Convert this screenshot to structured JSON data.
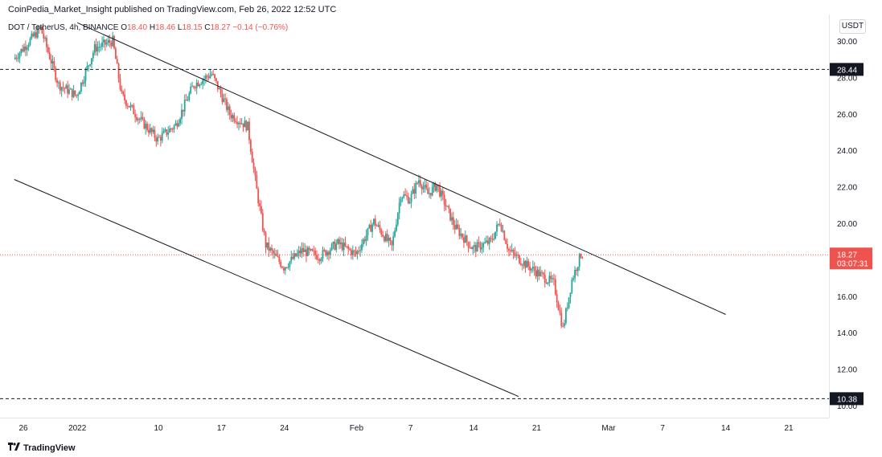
{
  "publisher": "CoinPedia_Market_Insight published on TradingView.com, Feb 26, 2022 12:52 UTC",
  "legend": {
    "symbol": "DOT / TetherUS, 4h, BINANCE",
    "open_label": "O",
    "open": "18.40",
    "high_label": "H",
    "high": "18.46",
    "low_label": "L",
    "low": "18.15",
    "close_label": "C",
    "close": "18.27",
    "change": "−0.14 (−0.76%)"
  },
  "currency": "USDT",
  "brand": "TradingView",
  "colors": {
    "up": "#26a69a",
    "down": "#ef5350",
    "axis_text": "#131722",
    "line": "#131722",
    "price_line": "#ef5350"
  },
  "chart_data": {
    "type": "candlestick",
    "pair": "DOT/USDT",
    "interval": "4h",
    "exchange": "BINANCE",
    "x_ticks": [
      "26",
      "2022",
      "10",
      "17",
      "24",
      "Feb",
      "7",
      "14",
      "21",
      "Mar",
      "7",
      "14",
      "21"
    ],
    "y_ticks": [
      "10.00",
      "12.00",
      "14.00",
      "16.00",
      "18.00",
      "20.00",
      "22.00",
      "24.00",
      "26.00",
      "28.00",
      "30.00"
    ],
    "ylim": [
      9.8,
      31.2
    ],
    "current_price": "18.27",
    "countdown": "03:07:31",
    "horizontal_levels": [
      {
        "label": "28.44",
        "value": 28.44
      },
      {
        "label": "10.38",
        "value": 10.38
      }
    ],
    "trend_lines": [
      {
        "name": "channel-upper",
        "from": {
          "x": "2022-01-01",
          "y": 31.0
        },
        "to": {
          "x": "2022-03-14",
          "y": 15.0
        }
      },
      {
        "name": "channel-lower",
        "from": {
          "x": "2021-12-25",
          "y": 22.4
        },
        "to": {
          "x": "2022-02-19",
          "y": 10.5
        }
      }
    ],
    "price_path": [
      {
        "date": "2021-12-25",
        "price": 29.0
      },
      {
        "date": "2021-12-28",
        "price": 30.7
      },
      {
        "date": "2021-12-30",
        "price": 27.6
      },
      {
        "date": "2022-01-01",
        "price": 27.0
      },
      {
        "date": "2022-01-03",
        "price": 29.6
      },
      {
        "date": "2022-01-05",
        "price": 30.0
      },
      {
        "date": "2022-01-06",
        "price": 27.0
      },
      {
        "date": "2022-01-08",
        "price": 25.7
      },
      {
        "date": "2022-01-10",
        "price": 24.6
      },
      {
        "date": "2022-01-12",
        "price": 25.4
      },
      {
        "date": "2022-01-14",
        "price": 27.6
      },
      {
        "date": "2022-01-16",
        "price": 28.2
      },
      {
        "date": "2022-01-18",
        "price": 26.0
      },
      {
        "date": "2022-01-20",
        "price": 25.3
      },
      {
        "date": "2022-01-21",
        "price": 21.8
      },
      {
        "date": "2022-01-22",
        "price": 18.8
      },
      {
        "date": "2022-01-24",
        "price": 17.6
      },
      {
        "date": "2022-01-26",
        "price": 18.5
      },
      {
        "date": "2022-01-28",
        "price": 18.2
      },
      {
        "date": "2022-01-30",
        "price": 18.9
      },
      {
        "date": "2022-02-01",
        "price": 18.3
      },
      {
        "date": "2022-02-03",
        "price": 20.1
      },
      {
        "date": "2022-02-05",
        "price": 18.7
      },
      {
        "date": "2022-02-06",
        "price": 21.6
      },
      {
        "date": "2022-02-07",
        "price": 21.3
      },
      {
        "date": "2022-02-08",
        "price": 22.4
      },
      {
        "date": "2022-02-09",
        "price": 21.6
      },
      {
        "date": "2022-02-10",
        "price": 22.1
      },
      {
        "date": "2022-02-12",
        "price": 19.8
      },
      {
        "date": "2022-02-14",
        "price": 18.6
      },
      {
        "date": "2022-02-16",
        "price": 19.0
      },
      {
        "date": "2022-02-17",
        "price": 20.1
      },
      {
        "date": "2022-02-18",
        "price": 18.5
      },
      {
        "date": "2022-02-20",
        "price": 17.7
      },
      {
        "date": "2022-02-22",
        "price": 17.0
      },
      {
        "date": "2022-02-23",
        "price": 16.7
      },
      {
        "date": "2022-02-24",
        "price": 14.2
      },
      {
        "date": "2022-02-25",
        "price": 16.9
      },
      {
        "date": "2022-02-26",
        "price": 18.3
      }
    ]
  }
}
